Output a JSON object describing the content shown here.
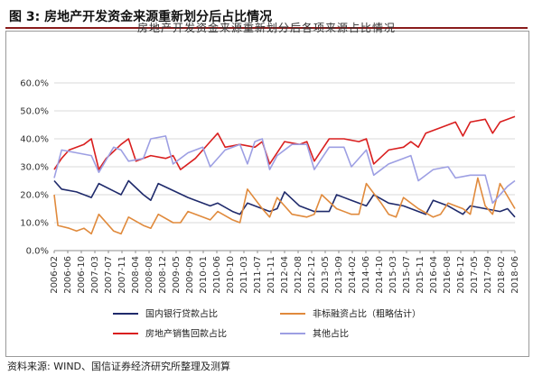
{
  "figure": {
    "label": "图 3:  房地产开发资金来源重新划分后占比情况"
  },
  "source": "资料来源: WIND、国信证券经济研究所整理及测算",
  "chart_data": {
    "type": "line",
    "title": "房地产开发资金来源重新划分后各项来源占比情况",
    "xlabel": "",
    "ylabel": "",
    "ylim": [
      0,
      60
    ],
    "yticks": [
      "0.0%",
      "10.0%",
      "20.0%",
      "30.0%",
      "40.0%",
      "50.0%",
      "60.0%"
    ],
    "x_tick_labels": [
      "2006-02",
      "2006-06",
      "2006-10",
      "2007-03",
      "2007-07",
      "2007-11",
      "2008-04",
      "2008-08",
      "2008-12",
      "2009-05",
      "2009-09",
      "2010-01",
      "2010-06",
      "2010-10",
      "2011-03",
      "2011-07",
      "2011-11",
      "2012-04",
      "2012-08",
      "2012-12",
      "2013-05",
      "2013-09",
      "2014-02",
      "2014-06",
      "2014-10",
      "2015-03",
      "2015-07",
      "2015-11",
      "2016-04",
      "2016-08",
      "2016-12",
      "2017-05",
      "2017-09",
      "2018-02",
      "2018-06"
    ],
    "grid": true,
    "legend_position": "bottom",
    "series": [
      {
        "name": "国内银行贷款占比",
        "color": "#1f2a6b",
        "anchors": [
          [
            0,
            25
          ],
          [
            1,
            22
          ],
          [
            3,
            21
          ],
          [
            5,
            19
          ],
          [
            6,
            24
          ],
          [
            9,
            20
          ],
          [
            10,
            25
          ],
          [
            12,
            20
          ],
          [
            13,
            18
          ],
          [
            14,
            24
          ],
          [
            18,
            19
          ],
          [
            19,
            18
          ],
          [
            21,
            16
          ],
          [
            22,
            17
          ],
          [
            24,
            14
          ],
          [
            25,
            13
          ],
          [
            26,
            17
          ],
          [
            28,
            15
          ],
          [
            29,
            14
          ],
          [
            30,
            15
          ],
          [
            31,
            21
          ],
          [
            33,
            16
          ],
          [
            34,
            15
          ],
          [
            35,
            14
          ],
          [
            37,
            14
          ],
          [
            38,
            20
          ],
          [
            40,
            18
          ],
          [
            42,
            16
          ],
          [
            43,
            20
          ],
          [
            45,
            17
          ],
          [
            47,
            16
          ],
          [
            49,
            14
          ],
          [
            50,
            13
          ],
          [
            51,
            18
          ],
          [
            53,
            16
          ],
          [
            55,
            13
          ],
          [
            56,
            16
          ],
          [
            58,
            15
          ],
          [
            60,
            14
          ],
          [
            61,
            15
          ],
          [
            62,
            12
          ]
        ]
      },
      {
        "name": "非标融资占比（粗略估计）",
        "color": "#e08a3c",
        "anchors": [
          [
            0,
            20
          ],
          [
            0.5,
            9
          ],
          [
            2,
            8
          ],
          [
            3,
            7
          ],
          [
            4,
            8
          ],
          [
            5,
            6
          ],
          [
            6,
            13
          ],
          [
            8,
            7
          ],
          [
            9,
            6
          ],
          [
            10,
            12
          ],
          [
            12,
            9
          ],
          [
            13,
            8
          ],
          [
            14,
            13
          ],
          [
            16,
            10
          ],
          [
            17,
            10
          ],
          [
            18,
            14
          ],
          [
            20,
            12
          ],
          [
            21,
            11
          ],
          [
            22,
            14
          ],
          [
            24,
            11
          ],
          [
            25,
            10
          ],
          [
            26,
            22
          ],
          [
            28,
            15
          ],
          [
            29,
            12
          ],
          [
            30,
            19
          ],
          [
            32,
            13
          ],
          [
            34,
            12
          ],
          [
            35,
            13
          ],
          [
            36,
            20
          ],
          [
            38,
            15
          ],
          [
            40,
            13
          ],
          [
            41,
            13
          ],
          [
            42,
            24
          ],
          [
            44,
            17
          ],
          [
            45,
            13
          ],
          [
            46,
            12
          ],
          [
            47,
            19
          ],
          [
            49,
            15
          ],
          [
            51,
            12
          ],
          [
            52,
            13
          ],
          [
            53,
            17
          ],
          [
            55,
            15
          ],
          [
            56,
            13
          ],
          [
            57,
            26
          ],
          [
            58,
            16
          ],
          [
            59,
            13
          ],
          [
            60,
            24
          ],
          [
            62,
            15
          ]
        ]
      },
      {
        "name": "房地产销售回款占比",
        "color": "#d91f1f",
        "anchors": [
          [
            0,
            29
          ],
          [
            1,
            33
          ],
          [
            2,
            36
          ],
          [
            4,
            38
          ],
          [
            5,
            40
          ],
          [
            6,
            29
          ],
          [
            7,
            33
          ],
          [
            9,
            38
          ],
          [
            10,
            40
          ],
          [
            11,
            32
          ],
          [
            13,
            34
          ],
          [
            15,
            33
          ],
          [
            16,
            34
          ],
          [
            17,
            29
          ],
          [
            19,
            33
          ],
          [
            21,
            39
          ],
          [
            22,
            42
          ],
          [
            23,
            37
          ],
          [
            25,
            38
          ],
          [
            27,
            37
          ],
          [
            28,
            39
          ],
          [
            29,
            31
          ],
          [
            31,
            39
          ],
          [
            33,
            38
          ],
          [
            34,
            39
          ],
          [
            35,
            32
          ],
          [
            36,
            36
          ],
          [
            37,
            40
          ],
          [
            39,
            40
          ],
          [
            41,
            39
          ],
          [
            42,
            40
          ],
          [
            43,
            31
          ],
          [
            45,
            36
          ],
          [
            47,
            37
          ],
          [
            48,
            39
          ],
          [
            49,
            37
          ],
          [
            50,
            42
          ],
          [
            52,
            44
          ],
          [
            53,
            45
          ],
          [
            54,
            46
          ],
          [
            55,
            41
          ],
          [
            56,
            46
          ],
          [
            58,
            47
          ],
          [
            59,
            42
          ],
          [
            60,
            46
          ],
          [
            62,
            48
          ]
        ]
      },
      {
        "name": "其他占比",
        "color": "#9d9fe3",
        "anchors": [
          [
            0,
            26
          ],
          [
            1,
            36
          ],
          [
            3,
            35
          ],
          [
            5,
            34
          ],
          [
            6,
            28
          ],
          [
            8,
            37
          ],
          [
            9,
            36
          ],
          [
            10,
            32
          ],
          [
            12,
            33
          ],
          [
            13,
            40
          ],
          [
            15,
            41
          ],
          [
            16,
            31
          ],
          [
            18,
            35
          ],
          [
            20,
            37
          ],
          [
            21,
            30
          ],
          [
            23,
            36
          ],
          [
            25,
            38
          ],
          [
            26,
            31
          ],
          [
            27,
            39
          ],
          [
            28,
            40
          ],
          [
            29,
            29
          ],
          [
            30,
            34
          ],
          [
            32,
            38
          ],
          [
            34,
            38
          ],
          [
            35,
            29
          ],
          [
            37,
            37
          ],
          [
            39,
            37
          ],
          [
            40,
            30
          ],
          [
            42,
            36
          ],
          [
            43,
            27
          ],
          [
            45,
            31
          ],
          [
            47,
            33
          ],
          [
            48,
            34
          ],
          [
            49,
            25
          ],
          [
            51,
            29
          ],
          [
            53,
            30
          ],
          [
            54,
            26
          ],
          [
            56,
            27
          ],
          [
            58,
            27
          ],
          [
            59,
            17
          ],
          [
            61,
            23
          ],
          [
            62,
            25
          ]
        ]
      }
    ]
  }
}
